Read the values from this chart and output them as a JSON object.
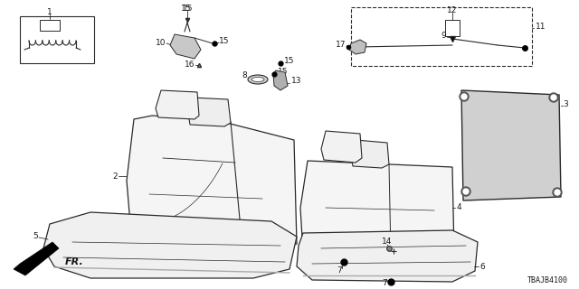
{
  "bg_color": "#ffffff",
  "line_color": "#2a2a2a",
  "text_color": "#1a1a1a",
  "diagram_code": "TBAJB4100",
  "font_size": 6.5,
  "figsize": [
    6.4,
    3.2
  ],
  "dpi": 100
}
